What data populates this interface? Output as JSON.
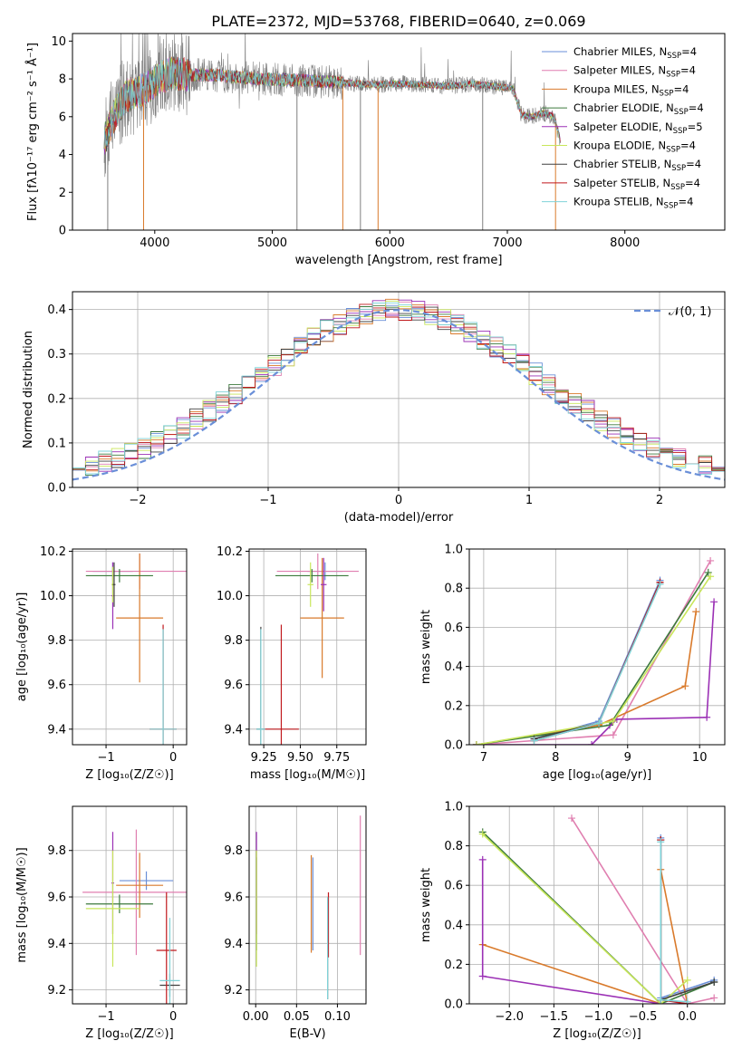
{
  "figure_title": "PLATE=2372, MJD=53768, FIBERID=0640, z=0.069",
  "colors": {
    "chabrier_miles": "#6a8fd8",
    "salpeter_miles": "#e07fb0",
    "kroupa_miles": "#d97a2b",
    "chabrier_elodie": "#3d7a3d",
    "salpeter_elodie": "#9b30b5",
    "kroupa_elodie": "#c8e65a",
    "chabrier_stelib": "#404040",
    "salpeter_stelib": "#c0181c",
    "kroupa_stelib": "#7fd3d8",
    "data": "#7f7f7f",
    "gaussian": "#6a8fd8"
  },
  "chart_data": [
    {
      "id": "spectrum",
      "type": "line",
      "title": "PLATE=2372, MJD=53768, FIBERID=0640, z=0.069",
      "xlabel": "wavelength [Angstrom, rest frame]",
      "ylabel": "Flux [fλ10⁻¹⁷ erg cm⁻² s⁻¹ Å⁻¹]",
      "xlim": [
        3300,
        8850
      ],
      "ylim": [
        0,
        10.4
      ],
      "xticks": [
        4000,
        5000,
        6000,
        7000,
        8000
      ],
      "yticks": [
        0,
        2,
        4,
        6,
        8,
        10
      ],
      "grid": false,
      "legend": "top-right",
      "series": [
        {
          "name": "Chabrier MILES, N_SSP=4",
          "key": "chabrier_miles"
        },
        {
          "name": "Salpeter MILES, N_SSP=4",
          "key": "salpeter_miles"
        },
        {
          "name": "Kroupa MILES, N_SSP=4",
          "key": "kroupa_miles"
        },
        {
          "name": "Chabrier ELODIE, N_SSP=4",
          "key": "chabrier_elodie"
        },
        {
          "name": "Salpeter ELODIE, N_SSP=5",
          "key": "salpeter_elodie"
        },
        {
          "name": "Kroupa ELODIE, N_SSP=4",
          "key": "kroupa_elodie"
        },
        {
          "name": "Chabrier STELIB, N_SSP=4",
          "key": "chabrier_stelib"
        },
        {
          "name": "Salpeter STELIB, N_SSP=4",
          "key": "salpeter_stelib"
        },
        {
          "name": "Kroupa STELIB, N_SSP=4",
          "key": "kroupa_stelib"
        }
      ],
      "continuum": {
        "x": [
          3570,
          3650,
          3750,
          3850,
          3950,
          4050,
          4150,
          4300,
          4500,
          4700,
          4900,
          5100,
          5300,
          5500,
          5700,
          5900,
          6100,
          6300,
          6500,
          6700,
          6900,
          7050,
          7120,
          7200,
          7300,
          7400,
          7450
        ],
        "y": [
          4.7,
          6.0,
          7.1,
          7.3,
          7.6,
          8.1,
          8.3,
          8.2,
          8.2,
          8.1,
          8.0,
          7.95,
          7.9,
          7.85,
          7.75,
          7.7,
          7.75,
          7.7,
          7.6,
          7.75,
          7.6,
          7.5,
          6.1,
          6.0,
          6.2,
          6.0,
          4.7
        ]
      }
    },
    {
      "id": "residuals",
      "type": "bar",
      "xlabel": "(data-model)/error",
      "ylabel": "Normed distribution",
      "xlim": [
        -2.5,
        2.5
      ],
      "ylim": [
        0,
        0.44
      ],
      "xticks": [
        -2,
        -1,
        0,
        1,
        2
      ],
      "yticks": [
        0.0,
        0.1,
        0.2,
        0.3,
        0.4
      ],
      "grid": true,
      "legend": "top-right",
      "legend_label": "𝒩(0, 1)",
      "bins": {
        "start": -2.5,
        "width": 0.1,
        "count": 50
      }
    },
    {
      "id": "age_vs_Z",
      "type": "scatter",
      "xlabel": "Z [log₁₀(Z/Z☉)]",
      "ylabel": "age  [log₁₀(age/yr)]",
      "xlim": [
        -1.5,
        0.2
      ],
      "ylim": [
        9.33,
        10.21
      ],
      "xticks": [
        -1,
        0
      ],
      "yticks": [
        9.4,
        9.6,
        9.8,
        10.0,
        10.2
      ],
      "grid": true,
      "errorbars": [
        {
          "key": "chabrier_miles",
          "x": -0.9,
          "y": 10.11,
          "xerr": 0.3,
          "yerr": 0.04
        },
        {
          "key": "salpeter_miles",
          "x": -0.5,
          "y": 10.11,
          "xerr": 0.8,
          "yerr": 0.08
        },
        {
          "key": "kroupa_miles",
          "x": -0.5,
          "y": 9.9,
          "xerr": 0.35,
          "yerr": 0.29
        },
        {
          "key": "chabrier_elodie",
          "x": -0.8,
          "y": 10.09,
          "xerr": 0.5,
          "yerr": 0.03
        },
        {
          "key": "salpeter_elodie",
          "x": -0.9,
          "y": 10.0,
          "xerr": 0.02,
          "yerr": 0.15
        },
        {
          "key": "kroupa_elodie",
          "x": -0.9,
          "y": 10.05,
          "xerr": 0.02,
          "yerr": 0.08
        },
        {
          "key": "chabrier_stelib",
          "x": -0.88,
          "y": 10.05,
          "xerr": 0.02,
          "yerr": 0.1
        },
        {
          "key": "salpeter_stelib",
          "x": -0.15,
          "y": 9.4,
          "xerr": 0.2,
          "yerr": 0.47
        },
        {
          "key": "kroupa_stelib",
          "x": -0.15,
          "y": 9.4,
          "xerr": 0.2,
          "yerr": 0.45
        }
      ]
    },
    {
      "id": "age_vs_mass",
      "type": "scatter",
      "xlabel": "mass [log₁₀(M/M☉)]",
      "ylabel": "",
      "xlim": [
        9.15,
        9.95
      ],
      "ylim": [
        9.33,
        10.21
      ],
      "xticks": [
        9.25,
        9.5,
        9.75
      ],
      "yticks": [
        9.4,
        9.6,
        9.8,
        10.0,
        10.2
      ],
      "grid": true,
      "errorbars": [
        {
          "key": "chabrier_miles",
          "x": 9.67,
          "y": 10.11,
          "xerr": 0.12,
          "yerr": 0.04
        },
        {
          "key": "salpeter_miles",
          "x": 9.62,
          "y": 10.11,
          "xerr": 0.28,
          "yerr": 0.08
        },
        {
          "key": "kroupa_miles",
          "x": 9.65,
          "y": 9.9,
          "xerr": 0.15,
          "yerr": 0.27
        },
        {
          "key": "chabrier_elodie",
          "x": 9.58,
          "y": 10.09,
          "xerr": 0.25,
          "yerr": 0.03
        },
        {
          "key": "salpeter_elodie",
          "x": 9.66,
          "y": 10.05,
          "xerr": 0.02,
          "yerr": 0.12
        },
        {
          "key": "kroupa_elodie",
          "x": 9.57,
          "y": 10.05,
          "xerr": 0.02,
          "yerr": 0.1
        },
        {
          "key": "chabrier_stelib",
          "x": 9.23,
          "y": 9.4,
          "xerr": 0.03,
          "yerr": 0.46
        },
        {
          "key": "salpeter_stelib",
          "x": 9.37,
          "y": 9.4,
          "xerr": 0.12,
          "yerr": 0.47
        },
        {
          "key": "kroupa_stelib",
          "x": 9.23,
          "y": 9.4,
          "xerr": 0.03,
          "yerr": 0.45
        }
      ]
    },
    {
      "id": "weight_vs_age",
      "type": "line",
      "xlabel": "age  [log₁₀(age/yr)]",
      "ylabel": "mass weight",
      "xlim": [
        6.8,
        10.35
      ],
      "ylim": [
        0,
        1.0
      ],
      "xticks": [
        7,
        8,
        9,
        10
      ],
      "yticks": [
        0.0,
        0.2,
        0.4,
        0.6,
        0.8,
        1.0
      ],
      "grid": true,
      "series": [
        {
          "key": "chabrier_miles",
          "x": [
            7.7,
            8.6,
            9.45
          ],
          "y": [
            0.03,
            0.12,
            0.84
          ]
        },
        {
          "key": "salpeter_miles",
          "x": [
            6.9,
            8.8,
            10.15
          ],
          "y": [
            0.0,
            0.05,
            0.94
          ]
        },
        {
          "key": "kroupa_miles",
          "x": [
            6.9,
            8.6,
            9.8,
            9.95
          ],
          "y": [
            0.0,
            0.1,
            0.3,
            0.68
          ]
        },
        {
          "key": "chabrier_elodie",
          "x": [
            6.9,
            8.75,
            10.12
          ],
          "y": [
            0.0,
            0.1,
            0.88
          ]
        },
        {
          "key": "salpeter_elodie",
          "x": [
            6.9,
            8.5,
            8.85,
            10.1,
            10.2
          ],
          "y": [
            0.0,
            0.0,
            0.13,
            0.14,
            0.73
          ]
        },
        {
          "key": "kroupa_elodie",
          "x": [
            6.9,
            8.8,
            10.15
          ],
          "y": [
            0.0,
            0.12,
            0.86
          ]
        },
        {
          "key": "chabrier_stelib",
          "x": [
            7.7,
            8.6,
            9.45
          ],
          "y": [
            0.03,
            0.11,
            0.83
          ]
        },
        {
          "key": "salpeter_stelib",
          "x": [
            7.7,
            8.6,
            9.45
          ],
          "y": [
            0.02,
            0.11,
            0.83
          ]
        },
        {
          "key": "kroupa_stelib",
          "x": [
            7.7,
            8.6,
            9.45
          ],
          "y": [
            0.02,
            0.11,
            0.82
          ]
        }
      ]
    },
    {
      "id": "mass_vs_Z",
      "type": "scatter",
      "xlabel": "Z [log₁₀(Z/Z☉)]",
      "ylabel": "mass [log₁₀(M/M☉)]",
      "xlim": [
        -1.5,
        0.2
      ],
      "ylim": [
        9.14,
        9.99
      ],
      "xticks": [
        -1,
        0
      ],
      "yticks": [
        9.2,
        9.4,
        9.6,
        9.8
      ],
      "grid": true,
      "errorbars": [
        {
          "key": "chabrier_miles",
          "x": -0.4,
          "y": 9.67,
          "xerr": 0.4,
          "yerr": 0.04
        },
        {
          "key": "salpeter_miles",
          "x": -0.55,
          "y": 9.62,
          "xerr": 0.8,
          "yerr": 0.27
        },
        {
          "key": "kroupa_miles",
          "x": -0.5,
          "y": 9.65,
          "xerr": 0.35,
          "yerr": 0.14
        },
        {
          "key": "chabrier_elodie",
          "x": -0.8,
          "y": 9.57,
          "xerr": 0.5,
          "yerr": 0.04
        },
        {
          "key": "salpeter_elodie",
          "x": -0.9,
          "y": 9.66,
          "xerr": 0.02,
          "yerr": 0.22
        },
        {
          "key": "kroupa_elodie",
          "x": -0.9,
          "y": 9.55,
          "xerr": 0.4,
          "yerr": 0.25
        },
        {
          "key": "chabrier_stelib",
          "x": -0.05,
          "y": 9.22,
          "xerr": 0.15,
          "yerr": 0.05
        },
        {
          "key": "salpeter_stelib",
          "x": -0.1,
          "y": 9.37,
          "xerr": 0.15,
          "yerr": 0.25
        },
        {
          "key": "kroupa_stelib",
          "x": -0.05,
          "y": 9.24,
          "xerr": 0.15,
          "yerr": 0.27
        }
      ]
    },
    {
      "id": "mass_vs_ebv",
      "type": "scatter",
      "xlabel": "E(B-V)",
      "ylabel": "",
      "xlim": [
        -0.008,
        0.135
      ],
      "ylim": [
        9.14,
        9.99
      ],
      "xticks": [
        0.0,
        0.05,
        0.1
      ],
      "yticks": [
        9.2,
        9.4,
        9.6,
        9.8
      ],
      "grid": true,
      "errorbars": [
        {
          "key": "chabrier_miles",
          "x": 0.07,
          "y": 9.57,
          "xerr": 0,
          "yerr": 0.2
        },
        {
          "key": "salpeter_miles",
          "x": 0.128,
          "y": 9.65,
          "xerr": 0,
          "yerr": 0.3
        },
        {
          "key": "kroupa_miles",
          "x": 0.068,
          "y": 9.57,
          "xerr": 0,
          "yerr": 0.21
        },
        {
          "key": "chabrier_elodie",
          "x": 0.001,
          "y": 9.57,
          "xerr": 0,
          "yerr": 0.2
        },
        {
          "key": "salpeter_elodie",
          "x": 0.001,
          "y": 9.66,
          "xerr": 0,
          "yerr": 0.22
        },
        {
          "key": "kroupa_elodie",
          "x": 0.001,
          "y": 9.55,
          "xerr": 0,
          "yerr": 0.25
        },
        {
          "key": "chabrier_stelib",
          "x": 0.088,
          "y": 9.37,
          "xerr": 0,
          "yerr": 0.21
        },
        {
          "key": "salpeter_stelib",
          "x": 0.089,
          "y": 9.48,
          "xerr": 0,
          "yerr": 0.14
        },
        {
          "key": "kroupa_stelib",
          "x": 0.088,
          "y": 9.38,
          "xerr": 0,
          "yerr": 0.22
        }
      ]
    },
    {
      "id": "weight_vs_Z",
      "type": "line",
      "xlabel": "Z [log₁₀(Z/Z☉)]",
      "ylabel": "mass weight",
      "xlim": [
        -2.45,
        0.42
      ],
      "ylim": [
        0,
        1.0
      ],
      "xticks": [
        -2.0,
        -1.5,
        -1.0,
        -0.5,
        0.0
      ],
      "yticks": [
        0.0,
        0.2,
        0.4,
        0.6,
        0.8,
        1.0
      ],
      "grid": true,
      "series": [
        {
          "key": "chabrier_miles",
          "x": [
            -0.3,
            -0.3,
            0.3
          ],
          "y": [
            0.84,
            0.03,
            0.12
          ]
        },
        {
          "key": "salpeter_miles",
          "x": [
            -1.3,
            0.0,
            0.3
          ],
          "y": [
            0.94,
            0.0,
            0.03
          ]
        },
        {
          "key": "kroupa_miles",
          "x": [
            -2.3,
            -0.3,
            -0.3,
            0.0
          ],
          "y": [
            0.3,
            0.0,
            0.68,
            0.0
          ]
        },
        {
          "key": "chabrier_elodie",
          "x": [
            -2.3,
            -0.3,
            0.3
          ],
          "y": [
            0.87,
            0.0,
            0.11
          ]
        },
        {
          "key": "salpeter_elodie",
          "x": [
            -2.3,
            -2.3,
            -0.3,
            0.0
          ],
          "y": [
            0.73,
            0.14,
            0.0,
            0.0
          ]
        },
        {
          "key": "kroupa_elodie",
          "x": [
            -2.3,
            -0.3,
            0.0
          ],
          "y": [
            0.86,
            0.0,
            0.12
          ]
        },
        {
          "key": "chabrier_stelib",
          "x": [
            -0.3,
            -0.3,
            0.3
          ],
          "y": [
            0.83,
            0.02,
            0.11
          ]
        },
        {
          "key": "salpeter_stelib",
          "x": [
            -0.3,
            -0.3,
            0.0
          ],
          "y": [
            0.83,
            0.02,
            0.0
          ]
        },
        {
          "key": "kroupa_stelib",
          "x": [
            -0.3,
            -0.3,
            0.0
          ],
          "y": [
            0.82,
            0.02,
            0.01
          ]
        }
      ]
    }
  ]
}
